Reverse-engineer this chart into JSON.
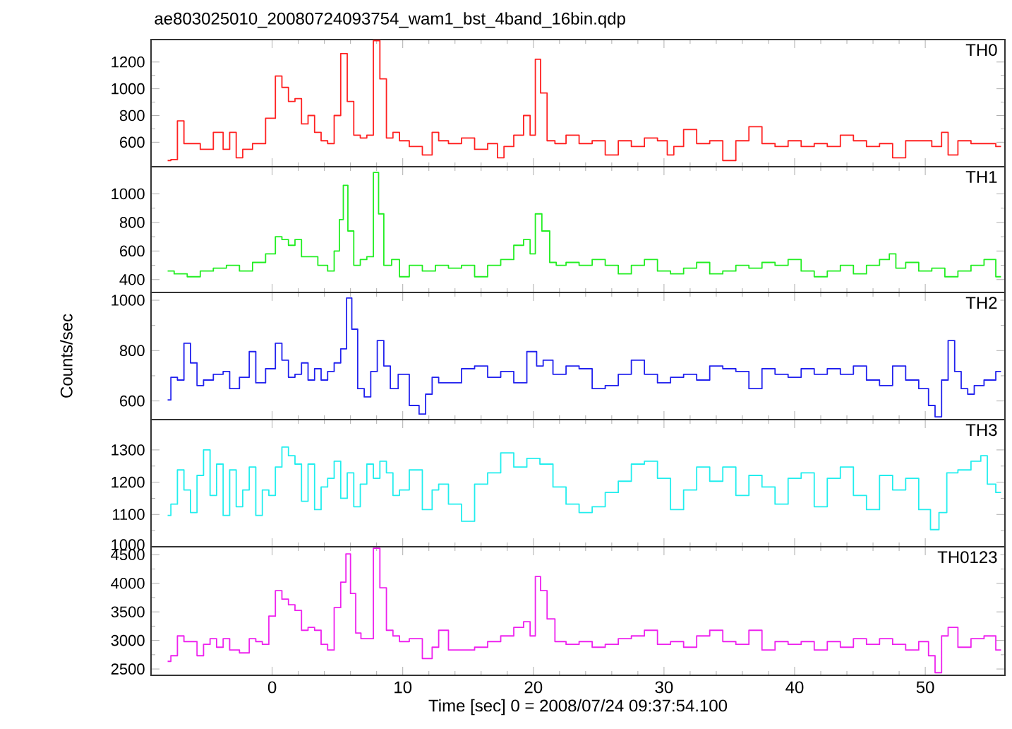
{
  "chart_data": [
    {
      "type": "step",
      "title": "ae803025010_20080724093754_wam1_bst_4band_16bin.qdp",
      "xlim": [
        -9.27,
        56.1
      ],
      "ylim": [
        417,
        1368
      ],
      "yticks": [
        600,
        800,
        1000,
        1200
      ],
      "tick_labels": "y",
      "x": [
        -8,
        -7.5,
        -7,
        -6.5,
        -6,
        -5,
        -4,
        -3.5,
        -3,
        -2.5,
        -2,
        -1,
        0,
        0.5,
        1,
        1.5,
        2,
        2.5,
        3,
        3.5,
        4,
        4.5,
        5,
        5.5,
        6,
        6.5,
        7,
        7.5,
        8,
        8.5,
        9,
        9.5,
        10,
        11,
        12,
        12.5,
        13,
        14,
        15,
        16,
        17,
        17.5,
        18,
        19,
        19.5,
        20,
        20.3,
        20.8,
        21.3,
        22,
        23,
        24,
        25,
        26,
        27,
        28,
        29,
        30,
        30.5,
        31,
        32,
        33,
        34,
        35,
        36,
        37,
        38,
        39,
        40,
        41,
        42,
        43,
        44,
        45,
        46,
        47,
        48,
        49,
        50,
        51,
        51.5,
        52,
        53,
        54,
        55,
        55.8
      ],
      "series": [
        {
          "name": "TH0",
          "color": "#ff2222",
          "values": [
            463,
            470,
            760,
            590,
            590,
            547,
            674,
            547,
            674,
            484,
            547,
            590,
            779,
            1095,
            1010,
            905,
            926,
            737,
            800,
            674,
            611,
            590,
            800,
            1263,
            905,
            653,
            632,
            653,
            1360,
            1074,
            632,
            674,
            611,
            568,
            505,
            674,
            611,
            590,
            632,
            547,
            590,
            484,
            568,
            653,
            800,
            653,
            1221,
            968,
            611,
            590,
            653,
            590,
            611,
            505,
            611,
            568,
            632,
            611,
            505,
            568,
            695,
            590,
            611,
            463,
            611,
            716,
            590,
            568,
            611,
            568,
            590,
            568,
            653,
            611,
            568,
            590,
            484,
            611,
            611,
            568,
            674,
            505,
            611,
            590,
            590,
            568
          ]
        }
      ]
    },
    {
      "type": "step",
      "xlim": [
        -9.27,
        56.1
      ],
      "ylim": [
        310,
        1190
      ],
      "yticks": [
        400,
        600,
        800,
        1000
      ],
      "tick_labels": "y",
      "x": [
        -8,
        -7,
        -6,
        -5,
        -4,
        -3,
        -2,
        -1,
        0,
        0.5,
        1,
        1.5,
        2,
        2.5,
        3,
        4,
        4.5,
        5,
        5.3,
        5.6,
        6,
        6.5,
        7,
        7.5,
        8,
        8.3,
        8.8,
        9.5,
        10,
        11,
        12,
        13,
        14,
        15,
        16,
        17,
        18,
        19,
        19.5,
        20,
        20.3,
        21,
        21.5,
        22,
        23,
        24,
        25,
        26,
        27,
        28,
        29,
        30,
        31,
        32,
        33,
        34,
        35,
        36,
        37,
        38,
        39,
        40,
        41,
        42,
        43,
        44,
        45,
        46,
        47,
        47.5,
        48,
        49,
        50,
        51,
        52,
        53,
        54,
        55,
        55.8
      ],
      "series": [
        {
          "name": "TH1",
          "color": "#22ee22",
          "values": [
            460,
            440,
            420,
            460,
            480,
            500,
            460,
            520,
            580,
            700,
            680,
            640,
            680,
            560,
            560,
            500,
            460,
            600,
            820,
            1060,
            740,
            500,
            540,
            560,
            1150,
            860,
            500,
            540,
            420,
            500,
            460,
            500,
            480,
            500,
            420,
            500,
            540,
            640,
            680,
            580,
            860,
            740,
            520,
            500,
            520,
            500,
            540,
            500,
            440,
            500,
            540,
            460,
            440,
            480,
            520,
            440,
            460,
            500,
            480,
            520,
            500,
            540,
            460,
            420,
            460,
            500,
            440,
            500,
            540,
            580,
            480,
            520,
            460,
            480,
            420,
            460,
            500,
            540,
            420
          ]
        }
      ]
    },
    {
      "type": "step",
      "xlim": [
        -9.27,
        56.1
      ],
      "ylim": [
        526,
        1031
      ],
      "yticks": [
        600,
        800,
        1000
      ],
      "tick_labels": "y",
      "ylabel": "Counts/sec",
      "x": [
        -8,
        -7.5,
        -7,
        -6.5,
        -6,
        -5.5,
        -5,
        -4,
        -3.5,
        -3,
        -2,
        -1.5,
        -1,
        0,
        0.5,
        1,
        1.5,
        2,
        2.5,
        3,
        3.5,
        4,
        4.5,
        5,
        5.5,
        5.9,
        6.3,
        6.8,
        7.3,
        7.8,
        8.3,
        8.8,
        9.3,
        10,
        11,
        11.5,
        12,
        12.5,
        13,
        14,
        15,
        16,
        17,
        18,
        19,
        20,
        20.5,
        21,
        22,
        23,
        24,
        25,
        26,
        27,
        28,
        29,
        30,
        31,
        32,
        33,
        34,
        35,
        36,
        37,
        38,
        39,
        40,
        41,
        42,
        43,
        44,
        45,
        46,
        47,
        48,
        49,
        50,
        50.5,
        51,
        51.5,
        52,
        52.5,
        53,
        53.5,
        54,
        55,
        55.8
      ],
      "series": [
        {
          "name": "TH2",
          "color": "#2222ee",
          "values": [
            604,
            694,
            683,
            829,
            751,
            661,
            683,
            706,
            717,
            649,
            694,
            796,
            672,
            728,
            829,
            762,
            694,
            706,
            751,
            683,
            728,
            683,
            717,
            751,
            807,
            1009,
            885,
            649,
            616,
            717,
            840,
            739,
            649,
            706,
            582,
            548,
            627,
            694,
            672,
            672,
            728,
            739,
            694,
            717,
            672,
            796,
            739,
            762,
            706,
            739,
            728,
            649,
            661,
            706,
            762,
            706,
            672,
            694,
            706,
            683,
            739,
            728,
            717,
            649,
            728,
            706,
            694,
            728,
            706,
            728,
            706,
            739,
            683,
            661,
            739,
            683,
            649,
            582,
            537,
            683,
            840,
            717,
            649,
            627,
            661,
            683,
            717
          ]
        }
      ]
    },
    {
      "type": "step",
      "xlim": [
        -9.27,
        56.1
      ],
      "ylim": [
        1000,
        1394
      ],
      "yticks": [
        1000,
        1100,
        1200,
        1300
      ],
      "tick_labels": "y",
      "x": [
        -8,
        -7.5,
        -7,
        -6.5,
        -6,
        -5.5,
        -5,
        -4.5,
        -4,
        -3.5,
        -3,
        -2.5,
        -2,
        -1.5,
        -1,
        -0.5,
        0,
        0.5,
        1,
        1.5,
        2,
        2.5,
        3,
        3.5,
        4,
        4.5,
        5,
        5.5,
        6,
        6.5,
        7,
        7.5,
        8,
        8.5,
        9,
        9.5,
        10,
        11,
        12,
        12.5,
        13,
        14,
        15,
        16,
        17,
        18,
        19,
        20,
        21,
        22,
        23,
        24,
        25,
        26,
        27,
        28,
        29,
        30,
        31,
        32,
        33,
        34,
        35,
        36,
        37,
        38,
        39,
        40,
        41,
        42,
        43,
        44,
        45,
        46,
        47,
        48,
        49,
        50,
        50.8,
        51.3,
        52,
        53,
        54,
        54.5,
        55,
        55.8
      ],
      "series": [
        {
          "name": "TH3",
          "color": "#22eeee",
          "values": [
            1097,
            1132,
            1238,
            1176,
            1106,
            1221,
            1300,
            1159,
            1256,
            1097,
            1238,
            1124,
            1176,
            1247,
            1097,
            1176,
            1159,
            1247,
            1309,
            1282,
            1256,
            1141,
            1256,
            1115,
            1185,
            1212,
            1265,
            1150,
            1229,
            1124,
            1194,
            1256,
            1212,
            1265,
            1229,
            1159,
            1176,
            1238,
            1115,
            1176,
            1194,
            1132,
            1079,
            1194,
            1229,
            1291,
            1247,
            1274,
            1256,
            1185,
            1132,
            1106,
            1124,
            1168,
            1203,
            1256,
            1265,
            1212,
            1115,
            1176,
            1247,
            1203,
            1247,
            1159,
            1221,
            1185,
            1132,
            1212,
            1229,
            1124,
            1212,
            1247,
            1159,
            1115,
            1221,
            1176,
            1212,
            1115,
            1053,
            1106,
            1229,
            1238,
            1265,
            1282,
            1194,
            1168
          ]
        }
      ]
    },
    {
      "type": "step",
      "xlim": [
        -9.27,
        56.1
      ],
      "ylim": [
        2390,
        4640
      ],
      "xticks": [
        0,
        10,
        20,
        30,
        40,
        50
      ],
      "yticks": [
        2500,
        3000,
        3500,
        4000,
        4500
      ],
      "xlabel": "Time [sec] 0 = 2008/07/24 09:37:54.100",
      "x": [
        -8,
        -7.5,
        -7,
        -6.5,
        -6,
        -5.5,
        -5,
        -4.5,
        -4,
        -3.5,
        -3,
        -2,
        -1.5,
        -1,
        -0.5,
        0,
        0.5,
        1,
        1.5,
        2,
        2.5,
        3,
        3.5,
        4,
        4.5,
        5,
        5.5,
        5.8,
        6.2,
        6.6,
        7,
        7.5,
        8,
        8.5,
        9,
        9.5,
        10,
        11,
        12,
        12.5,
        13,
        14,
        15,
        16,
        17,
        18,
        19,
        19.5,
        20,
        20.3,
        20.8,
        21.3,
        22,
        23,
        24,
        25,
        26,
        27,
        28,
        29,
        30,
        31,
        32,
        33,
        34,
        35,
        36,
        37,
        38,
        39,
        40,
        41,
        42,
        43,
        44,
        45,
        46,
        47,
        48,
        49,
        50,
        50.5,
        51,
        51.5,
        52,
        53,
        54,
        55,
        55.8
      ],
      "series": [
        {
          "name": "TH0123",
          "color": "#ee22ee",
          "values": [
            2634,
            2733,
            3079,
            2980,
            2980,
            2733,
            2931,
            3030,
            2881,
            3030,
            2832,
            2782,
            3030,
            2980,
            2931,
            3426,
            3871,
            3723,
            3624,
            3525,
            3178,
            3228,
            3178,
            2931,
            2832,
            3574,
            4020,
            4515,
            3822,
            3129,
            3030,
            3030,
            4614,
            3921,
            3178,
            3079,
            2980,
            3030,
            2683,
            2881,
            3178,
            2832,
            2832,
            2881,
            2980,
            3079,
            3228,
            3327,
            3079,
            4119,
            3871,
            3376,
            2980,
            2931,
            2980,
            2881,
            2931,
            3030,
            3079,
            3178,
            2931,
            2980,
            2881,
            3079,
            3178,
            2980,
            2931,
            3178,
            2832,
            2980,
            2931,
            2980,
            2832,
            2980,
            2881,
            3030,
            2931,
            3030,
            2931,
            2832,
            2980,
            2733,
            2436,
            3079,
            3228,
            2881,
            3030,
            3079,
            2832
          ]
        }
      ]
    }
  ]
}
